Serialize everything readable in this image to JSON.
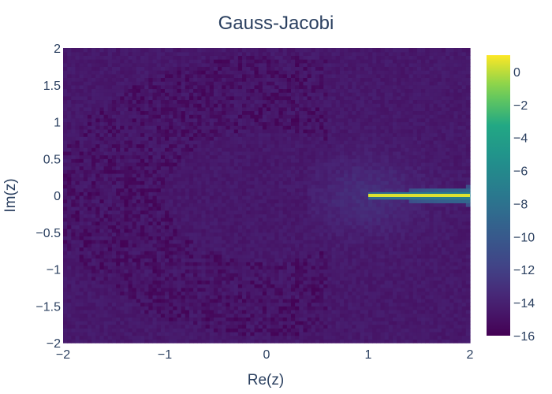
{
  "chart_data": {
    "type": "heatmap",
    "title": "Gauss-Jacobi",
    "xlabel": "Re(z)",
    "ylabel": "Im(z)",
    "xlim": [
      -2,
      2
    ],
    "ylim": [
      -2,
      2
    ],
    "x_ticks": [
      -2,
      -1,
      0,
      1,
      2
    ],
    "x_tick_labels": [
      "−2",
      "−1",
      "0",
      "1",
      "2"
    ],
    "y_ticks": [
      -2,
      -1.5,
      -1,
      -0.5,
      0,
      0.5,
      1,
      1.5,
      2
    ],
    "y_tick_labels": [
      "−2",
      "−1.5",
      "−1",
      "−0.5",
      "0",
      "0.5",
      "1",
      "1.5",
      "2"
    ],
    "colorscale": "viridis",
    "zlim": [
      -16,
      1
    ],
    "colorbar_ticks": [
      0,
      -2,
      -4,
      -6,
      -8,
      -10,
      -12,
      -14,
      -16
    ],
    "colorbar_tick_labels": [
      "0",
      "−2",
      "−4",
      "−6",
      "−8",
      "−10",
      "−12",
      "−14",
      "−16"
    ],
    "background_level": -14.5,
    "branch_cut": {
      "x_start": 1,
      "x_end": 2,
      "y": 0,
      "value": 0.5
    },
    "grid": false,
    "legend": "colorbar-right"
  }
}
